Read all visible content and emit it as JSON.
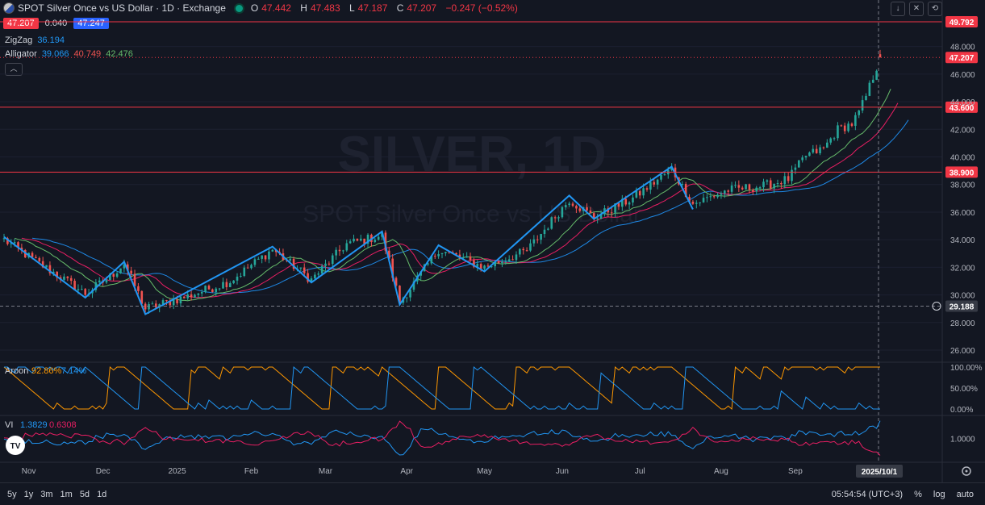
{
  "header": {
    "title": "SPOT Silver Once vs US Dollar · 1D · Exchange",
    "ohlc": {
      "o_label": "O",
      "o": "47.442",
      "h_label": "H",
      "h": "47.483",
      "l_label": "L",
      "l": "47.187",
      "c_label": "C",
      "c": "47.207",
      "change": "−0.247 (−0.52%)"
    }
  },
  "price_box": {
    "bid": "47.207",
    "spread": "0.040",
    "ask": "47.247"
  },
  "indicators": {
    "zigzag": {
      "name": "ZigZag",
      "value": "36.194"
    },
    "alligator": {
      "name": "Alligator",
      "v1": "39.066",
      "v2": "40.749",
      "v3": "42.476"
    }
  },
  "watermark": {
    "symbol": "SILVER, 1D",
    "desc": "SPOT Silver Once vs US Dollar"
  },
  "colors": {
    "bg": "#131722",
    "up": "#26a69a",
    "down": "#ef5350",
    "zigzag": "#2196f3",
    "jaw": "#1e88e5",
    "teeth": "#e91e63",
    "lips": "#66bb6a",
    "aroon_up": "#ff9800",
    "aroon_down": "#2196f3",
    "hline": "#f23645"
  },
  "toolbar_icons": [
    "arrow-down-icon",
    "cross-cursor-icon",
    "reset-icon"
  ],
  "chart_data": {
    "type": "line",
    "y_range": [
      25.3,
      50.2
    ],
    "y_ticks": [
      "48.000",
      "46.000",
      "44.000",
      "42.000",
      "40.000",
      "38.000",
      "36.000",
      "34.000",
      "32.000",
      "30.000",
      "28.000",
      "26.000"
    ],
    "x_labels": [
      "Nov",
      "Dec",
      "2025",
      "Feb",
      "Mar",
      "Apr",
      "May",
      "Jun",
      "Jul",
      "Aug",
      "Sep"
    ],
    "current_date_label": "2025/10/1",
    "hlines": [
      {
        "value": 49.792,
        "label": "49.792"
      },
      {
        "value": 43.6,
        "label": "43.600"
      },
      {
        "value": 38.9,
        "label": "38.900"
      }
    ],
    "last_price": {
      "value": 47.207,
      "label": "47.207"
    },
    "crosshair": {
      "value": 29.188,
      "label": "29.188"
    },
    "zigzag_points": [
      [
        0,
        34.2
      ],
      [
        23,
        29.8
      ],
      [
        34,
        32.4
      ],
      [
        40,
        28.6
      ],
      [
        76,
        33.5
      ],
      [
        87,
        30.9
      ],
      [
        107,
        34.6
      ],
      [
        112,
        29.3
      ],
      [
        123,
        33.6
      ],
      [
        136,
        31.7
      ],
      [
        160,
        37.2
      ],
      [
        167,
        35.5
      ],
      [
        189,
        39.3
      ],
      [
        195,
        36.2
      ]
    ],
    "candle_anchors": [
      [
        0,
        34.0
      ],
      [
        8,
        32.6
      ],
      [
        16,
        31.3
      ],
      [
        23,
        30.1
      ],
      [
        30,
        31.3
      ],
      [
        34,
        32.3
      ],
      [
        40,
        29.0
      ],
      [
        52,
        29.9
      ],
      [
        64,
        31.0
      ],
      [
        76,
        33.3
      ],
      [
        87,
        31.1
      ],
      [
        97,
        33.7
      ],
      [
        107,
        34.3
      ],
      [
        112,
        29.5
      ],
      [
        118,
        31.5
      ],
      [
        123,
        33.3
      ],
      [
        136,
        32.0
      ],
      [
        148,
        33.2
      ],
      [
        160,
        36.9
      ],
      [
        167,
        35.6
      ],
      [
        178,
        37.0
      ],
      [
        189,
        39.1
      ],
      [
        195,
        36.6
      ],
      [
        205,
        37.6
      ],
      [
        215,
        37.9
      ],
      [
        222,
        38.4
      ],
      [
        227,
        40.1
      ],
      [
        232,
        40.6
      ],
      [
        236,
        42.0
      ],
      [
        240,
        42.4
      ],
      [
        242,
        43.2
      ],
      [
        244,
        44.4
      ],
      [
        246,
        45.8
      ],
      [
        248,
        47.2
      ]
    ],
    "aroon": {
      "name": "Aroon",
      "up": "92.86%",
      "down": "7.14%",
      "axis": [
        "100.00%",
        "50.00%",
        "0.00%"
      ]
    },
    "vi": {
      "name": "VI",
      "plus": "1.3829",
      "minus": "0.6308",
      "axis": [
        "1.0000"
      ]
    }
  },
  "bottom_bar": {
    "ranges": [
      "5y",
      "1y",
      "3m",
      "1m",
      "5d",
      "1d"
    ],
    "time": "05:54:54 (UTC+3)",
    "pct": "%",
    "log": "log",
    "auto": "auto"
  }
}
